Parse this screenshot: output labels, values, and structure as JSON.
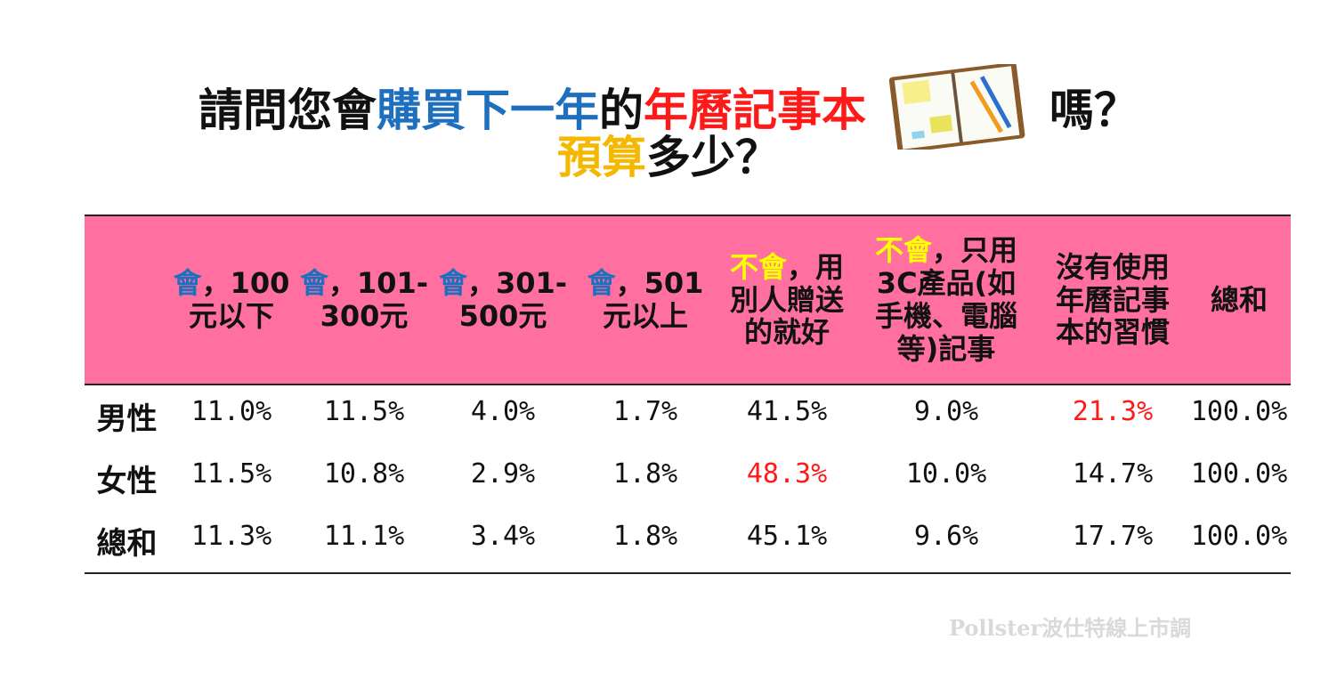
{
  "title": {
    "line1": [
      {
        "text": "請問您會",
        "color": "#111111"
      },
      {
        "text": "購買下一年",
        "color": "#1f6fbf"
      },
      {
        "text": "的",
        "color": "#111111"
      },
      {
        "text": "年曆記事本",
        "color": "#ff1a1a"
      },
      {
        "icon": "notebook-icon"
      },
      {
        "text": "嗎？",
        "color": "#111111"
      }
    ],
    "line2": [
      {
        "text": "預算",
        "color": "#f5b800"
      },
      {
        "text": "多少？",
        "color": "#111111"
      }
    ]
  },
  "chart_data": {
    "type": "table",
    "columns": [
      {
        "parts": [
          {
            "text": "會",
            "style": "blue"
          },
          {
            "text": "，100 元以下"
          }
        ]
      },
      {
        "parts": [
          {
            "text": "會",
            "style": "blue"
          },
          {
            "text": "，101- 300元"
          }
        ]
      },
      {
        "parts": [
          {
            "text": "會",
            "style": "blue"
          },
          {
            "text": "，301- 500元"
          }
        ]
      },
      {
        "parts": [
          {
            "text": "會",
            "style": "blue"
          },
          {
            "text": "，501 元以上"
          }
        ]
      },
      {
        "parts": [
          {
            "text": "不會",
            "style": "yellow"
          },
          {
            "text": "，用 別人贈送 的就好"
          }
        ]
      },
      {
        "parts": [
          {
            "text": "不會",
            "style": "yellow"
          },
          {
            "text": "，只用 3C產品(如 手機、電腦 等)記事"
          }
        ]
      },
      {
        "parts": [
          {
            "text": "沒有使用 年曆記事 本的習慣"
          }
        ]
      },
      {
        "parts": [
          {
            "text": "總和"
          }
        ]
      }
    ],
    "rows": [
      {
        "label": "男性",
        "values": [
          "11.0%",
          "11.5%",
          "4.0%",
          "1.7%",
          "41.5%",
          "9.0%",
          "21.3%",
          "100.0%"
        ],
        "highlight": [
          6
        ]
      },
      {
        "label": "女性",
        "values": [
          "11.5%",
          "10.8%",
          "2.9%",
          "1.8%",
          "48.3%",
          "10.0%",
          "14.7%",
          "100.0%"
        ],
        "highlight": [
          4
        ]
      },
      {
        "label": "總和",
        "values": [
          "11.3%",
          "11.1%",
          "3.4%",
          "1.8%",
          "45.1%",
          "9.6%",
          "17.7%",
          "100.0%"
        ],
        "highlight": []
      }
    ],
    "header_color": "#ff6f9f",
    "highlight_color": "#ff1a1a"
  },
  "footer": "Pollster波仕特線上市調"
}
